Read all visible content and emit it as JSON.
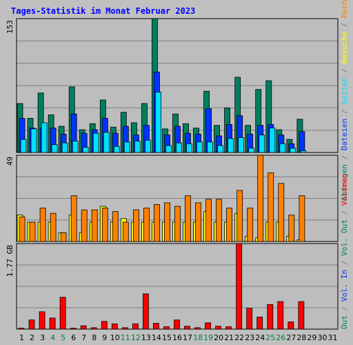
{
  "title": "Tages-Statistik im Monat Februar 2023",
  "colors": {
    "background": "#c0c0c0",
    "panel": "#bdbdbd",
    "grid": "#7f7f7f",
    "anfragen": "#007f5f",
    "dateien": "#0033ff",
    "seiten": "#00e0ff",
    "besuche": "#ffff00",
    "rechner": "#ff8000",
    "volumen": "#ff0000",
    "weekend_day": "#008040"
  },
  "chart_data": [
    {
      "type": "bar",
      "panel": "top",
      "ymax_label": "153",
      "ylim": [
        0,
        153
      ],
      "categories": [
        "1",
        "2",
        "3",
        "4",
        "5",
        "6",
        "7",
        "8",
        "9",
        "10",
        "11",
        "12",
        "13",
        "14",
        "15",
        "16",
        "17",
        "18",
        "19",
        "20",
        "21",
        "22",
        "23",
        "24",
        "25",
        "26",
        "27",
        "28",
        "29",
        "30",
        "31"
      ],
      "series": [
        {
          "name": "Anfragen",
          "color_key": "anfragen",
          "values": [
            56,
            39,
            68,
            43,
            30,
            75,
            26,
            33,
            60,
            29,
            46,
            34,
            56,
            153,
            27,
            44,
            33,
            28,
            70,
            31,
            51,
            86,
            31,
            72,
            82,
            26,
            15,
            38,
            0,
            0,
            0
          ]
        },
        {
          "name": "Dateien",
          "color_key": "dateien",
          "values": [
            39,
            28,
            28,
            28,
            21,
            44,
            22,
            26,
            39,
            22,
            30,
            20,
            31,
            92,
            20,
            30,
            22,
            21,
            50,
            19,
            32,
            42,
            21,
            31,
            32,
            20,
            10,
            24,
            0,
            0,
            0
          ]
        },
        {
          "name": "Seiten",
          "color_key": "seiten",
          "values": [
            15,
            27,
            34,
            9,
            11,
            13,
            6,
            22,
            23,
            7,
            12,
            13,
            14,
            69,
            8,
            11,
            10,
            12,
            12,
            8,
            16,
            17,
            5,
            20,
            28,
            10,
            5,
            2,
            0,
            0,
            0
          ]
        }
      ]
    },
    {
      "type": "bar",
      "panel": "middle",
      "ymax_label": "49",
      "ylim": [
        0,
        49
      ],
      "categories": [
        "1",
        "2",
        "3",
        "4",
        "5",
        "6",
        "7",
        "8",
        "9",
        "10",
        "11",
        "12",
        "13",
        "14",
        "15",
        "16",
        "17",
        "18",
        "19",
        "20",
        "21",
        "22",
        "23",
        "24",
        "25",
        "26",
        "27",
        "28",
        "29",
        "30",
        "31"
      ],
      "series": [
        {
          "name": "Besuche",
          "color_key": "besuche",
          "values": [
            15,
            11,
            11,
            11,
            5,
            15,
            5,
            11,
            20,
            11,
            13,
            11,
            11,
            11,
            11,
            11,
            11,
            11,
            17,
            11,
            11,
            16,
            3,
            2,
            11,
            11,
            3,
            1,
            0,
            0,
            0
          ]
        },
        {
          "name": "Rechner",
          "color_key": "rechner",
          "values": [
            14,
            11,
            19,
            16,
            5,
            26,
            18,
            18,
            19,
            17,
            11,
            18,
            19,
            21,
            22,
            20,
            26,
            22,
            24,
            24,
            19,
            29,
            19,
            49,
            39,
            33,
            15,
            26,
            0,
            0,
            0
          ]
        }
      ]
    },
    {
      "type": "bar",
      "panel": "bottom",
      "ymax_label": "1.77 GB",
      "ylim": [
        0,
        1.77
      ],
      "categories": [
        "1",
        "2",
        "3",
        "4",
        "5",
        "6",
        "7",
        "8",
        "9",
        "10",
        "11",
        "12",
        "13",
        "14",
        "15",
        "16",
        "17",
        "18",
        "19",
        "20",
        "21",
        "22",
        "23",
        "24",
        "25",
        "26",
        "27",
        "28",
        "29",
        "30",
        "31"
      ],
      "series": [
        {
          "name": "Volumen",
          "color_key": "volumen",
          "values": [
            0.02,
            0.19,
            0.36,
            0.23,
            0.66,
            0.02,
            0.07,
            0.03,
            0.16,
            0.11,
            0.03,
            0.11,
            0.73,
            0.12,
            0.05,
            0.19,
            0.06,
            0.03,
            0.13,
            0.06,
            0.05,
            1.77,
            0.43,
            0.25,
            0.51,
            0.57,
            0.15,
            0.57,
            0,
            0,
            0
          ]
        }
      ]
    }
  ],
  "weekend_days": [
    4,
    5,
    11,
    12,
    18,
    19,
    25,
    26
  ],
  "right_legend": {
    "top": [
      {
        "text": "Anfragen",
        "color_key": "anfragen"
      },
      {
        "text": " / ",
        "color_key": "grid"
      },
      {
        "text": "Dateien",
        "color_key": "dateien"
      },
      {
        "text": " / ",
        "color_key": "grid"
      },
      {
        "text": "Seiten",
        "color_key": "seiten"
      },
      {
        "text": " / ",
        "color_key": "grid"
      },
      {
        "text": "Besuche",
        "color_key": "besuche"
      },
      {
        "text": " / ",
        "color_key": "grid"
      },
      {
        "text": "Rechner",
        "color_key": "rechner"
      },
      {
        "text": " / ",
        "color_key": "grid"
      }
    ],
    "bottom": [
      {
        "text": "Out",
        "color_key": "anfragen"
      },
      {
        "text": " / ",
        "color_key": "grid"
      },
      {
        "text": "Vol. In",
        "color_key": "dateien"
      },
      {
        "text": " / ",
        "color_key": "grid"
      },
      {
        "text": "Vol. Out",
        "color_key": "anfragen"
      },
      {
        "text": " / ",
        "color_key": "grid"
      },
      {
        "text": "Volumen",
        "color_key": "volumen"
      }
    ]
  }
}
